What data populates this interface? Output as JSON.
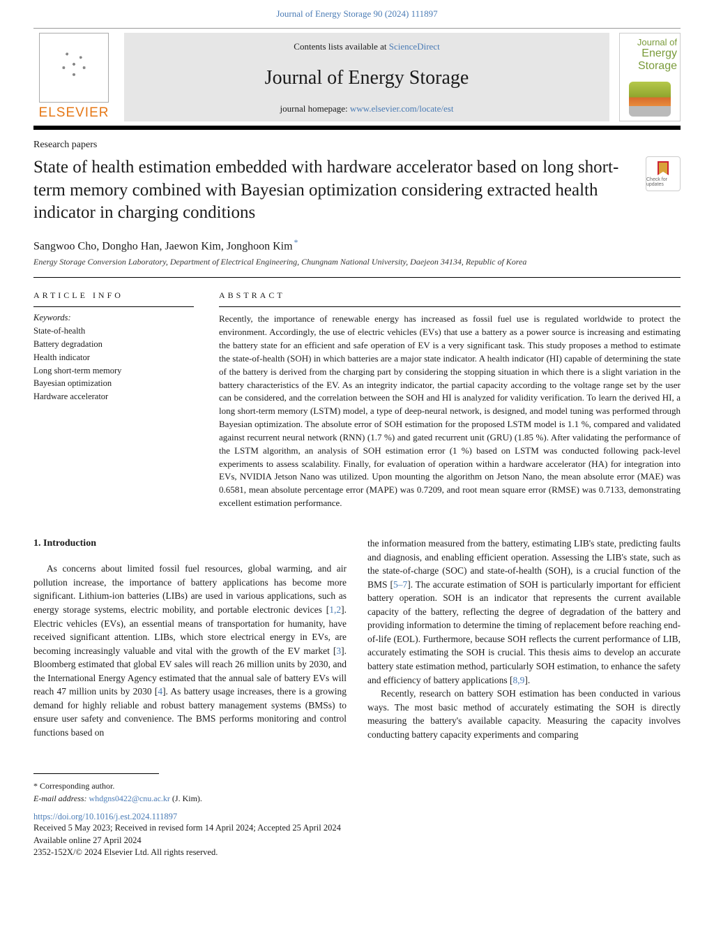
{
  "journal_ref": "Journal of Energy Storage 90 (2024) 111897",
  "masthead": {
    "publisher": "ELSEVIER",
    "contents_prefix": "Contents lists available at ",
    "contents_link": "ScienceDirect",
    "journal_name": "Journal of Energy Storage",
    "homepage_prefix": "journal homepage: ",
    "homepage_link": "www.elsevier.com/locate/est",
    "cover_line1": "Journal of",
    "cover_line2": "Energy",
    "cover_line3": "Storage"
  },
  "paper_type": "Research papers",
  "title": "State of health estimation embedded with hardware accelerator based on long short-term memory combined with Bayesian optimization considering extracted health indicator in charging conditions",
  "updates_badge": "Check for updates",
  "authors": "Sangwoo Cho, Dongho Han, Jaewon Kim, Jonghoon Kim",
  "corr_mark": "*",
  "affiliation": "Energy Storage Conversion Laboratory, Department of Electrical Engineering, Chungnam National University, Daejeon 34134, Republic of Korea",
  "article_info_heading": "ARTICLE INFO",
  "abstract_heading": "ABSTRACT",
  "keywords_label": "Keywords:",
  "keywords": [
    "State-of-health",
    "Battery degradation",
    "Health indicator",
    "Long short-term memory",
    "Bayesian optimization",
    "Hardware accelerator"
  ],
  "abstract": "Recently, the importance of renewable energy has increased as fossil fuel use is regulated worldwide to protect the environment. Accordingly, the use of electric vehicles (EVs) that use a battery as a power source is increasing and estimating the battery state for an efficient and safe operation of EV is a very significant task. This study proposes a method to estimate the state-of-health (SOH) in which batteries are a major state indicator. A health indicator (HI) capable of determining the state of the battery is derived from the charging part by considering the stopping situation in which there is a slight variation in the battery characteristics of the EV. As an integrity indicator, the partial capacity according to the voltage range set by the user can be considered, and the correlation between the SOH and HI is analyzed for validity verification. To learn the derived HI, a long short-term memory (LSTM) model, a type of deep-neural network, is designed, and model tuning was performed through Bayesian optimization. The absolute error of SOH estimation for the proposed LSTM model is 1.1 %, compared and validated against recurrent neural network (RNN) (1.7 %) and gated recurrent unit (GRU) (1.85 %). After validating the performance of the LSTM algorithm, an analysis of SOH estimation error (1 %) based on LSTM was conducted following pack-level experiments to assess scalability. Finally, for evaluation of operation within a hardware accelerator (HA) for integration into EVs, NVIDIA Jetson Nano was utilized. Upon mounting the algorithm on Jetson Nano, the mean absolute error (MAE) was 0.6581, mean absolute percentage error (MAPE) was 0.7209, and root mean square error (RMSE) was 0.7133, demonstrating excellent estimation performance.",
  "intro_heading": "1.  Introduction",
  "intro_col1": "As concerns about limited fossil fuel resources, global warming, and air pollution increase, the importance of battery applications has become more significant. Lithium-ion batteries (LIBs) are used in various applications, such as energy storage systems, electric mobility, and portable electronic devices [1,2]. Electric vehicles (EVs), an essential means of transportation for humanity, have received significant attention. LIBs, which store electrical energy in EVs, are becoming increasingly valuable and vital with the growth of the EV market [3]. Bloomberg estimated that global EV sales will reach 26 million units by 2030, and the International Energy Agency estimated that the annual sale of battery EVs will reach 47 million units by 2030 [4]. As battery usage increases, there is a growing demand for highly reliable and robust battery management systems (BMSs) to ensure user safety and convenience. The BMS performs monitoring and control functions based on",
  "intro_col2_p1": "the information measured from the battery, estimating LIB's state, predicting faults and diagnosis, and enabling efficient operation. Assessing the LIB's state, such as the state-of-charge (SOC) and state-of-health (SOH), is a crucial function of the BMS [5–7]. The accurate estimation of SOH is particularly important for efficient battery operation. SOH is an indicator that represents the current available capacity of the battery, reflecting the degree of degradation of the battery and providing information to determine the timing of replacement before reaching end-of-life (EOL). Furthermore, because SOH reflects the current performance of LIB, accurately estimating the SOH is crucial. This thesis aims to develop an accurate battery state estimation method, particularly SOH estimation, to enhance the safety and efficiency of battery applications [8,9].",
  "intro_col2_p2": "Recently, research on battery SOH estimation has been conducted in various ways. The most basic method of accurately estimating the SOH is directly measuring the battery's available capacity. Measuring the capacity involves conducting battery capacity experiments and comparing",
  "footnote_corr": "* Corresponding author.",
  "footnote_email_label": "E-mail address: ",
  "footnote_email": "whdgns0422@cnu.ac.kr",
  "footnote_email_suffix": " (J. Kim).",
  "doi": "https://doi.org/10.1016/j.est.2024.111897",
  "history_line1": "Received 5 May 2023; Received in revised form 14 April 2024; Accepted 25 April 2024",
  "history_line2": "Available online 27 April 2024",
  "history_line3": "2352-152X/© 2024 Elsevier Ltd. All rights reserved.",
  "colors": {
    "link": "#4a7bb5",
    "publisher": "#e67817",
    "banner_bg": "#e6e6e6"
  }
}
